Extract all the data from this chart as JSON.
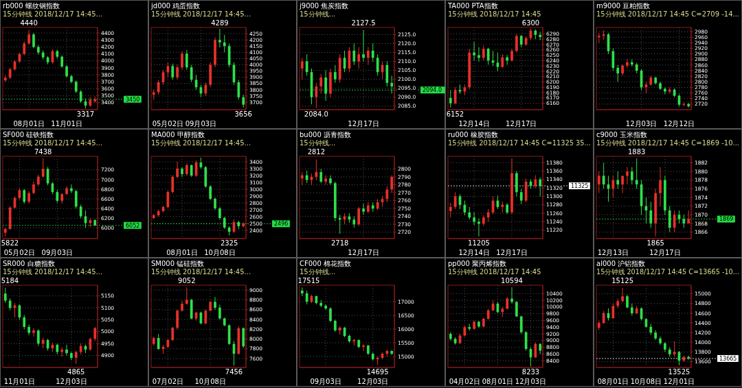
{
  "chart_data": [
    {
      "type": "candlestick",
      "title": "rb000 螺纹钢指数",
      "subtitle": "15分钟线 2018/12/17 14:45...",
      "grid": true,
      "ylim": [
        3300,
        4480
      ],
      "yticks": [
        3400,
        3500,
        3600,
        3700,
        3800,
        3900,
        4000,
        4100,
        4200,
        4300,
        4400
      ],
      "categories": [
        null,
        null,
        null,
        null,
        null,
        "08月01日",
        null,
        null,
        null,
        null,
        null,
        null,
        null,
        "11月01日",
        null,
        null,
        null,
        null,
        null,
        null
      ],
      "ohlc": [
        [
          3720,
          3790,
          3700,
          3760
        ],
        [
          3760,
          3900,
          3740,
          3880
        ],
        [
          3880,
          4010,
          3860,
          3990
        ],
        [
          3990,
          4120,
          3970,
          4100
        ],
        [
          4100,
          4280,
          4080,
          4250
        ],
        [
          4250,
          4440,
          4230,
          4380
        ],
        [
          4380,
          4400,
          4180,
          4200
        ],
        [
          4200,
          4230,
          4090,
          4120
        ],
        [
          4120,
          4150,
          4020,
          4050
        ],
        [
          4050,
          4070,
          3950,
          3980
        ],
        [
          3980,
          4170,
          3960,
          4140
        ],
        [
          4140,
          4160,
          4030,
          4060
        ],
        [
          4060,
          4080,
          3900,
          3920
        ],
        [
          3920,
          3940,
          3760,
          3780
        ],
        [
          3780,
          3800,
          3680,
          3700
        ],
        [
          3700,
          3720,
          3540,
          3560
        ],
        [
          3560,
          3580,
          3400,
          3420
        ],
        [
          3420,
          3460,
          3317,
          3360
        ],
        [
          3360,
          3480,
          3340,
          3440
        ],
        [
          3420,
          3490,
          3400,
          3450
        ]
      ],
      "annotations": [
        "4440",
        "3317"
      ],
      "ref_lines": [
        {
          "axis": "y",
          "value": 3450,
          "label": "3450",
          "color": "#22dd44"
        }
      ]
    },
    {
      "type": "candlestick",
      "title": "jd000 鸡蛋指数",
      "subtitle": "15分钟线 2018/12/17 14:45...",
      "grid": true,
      "ylim": [
        3640,
        4300
      ],
      "yticks": [
        3700,
        3750,
        3800,
        3850,
        3900,
        3950,
        4000,
        4050,
        4100,
        4150,
        4200,
        4250
      ],
      "categories": [
        null,
        null,
        null,
        "05月02日",
        null,
        null,
        null,
        null,
        null,
        null,
        "09月03日",
        null,
        null,
        null,
        null,
        null,
        null,
        null,
        null,
        null
      ],
      "ohlc": [
        [
          3760,
          3800,
          3720,
          3780
        ],
        [
          3780,
          3880,
          3760,
          3860
        ],
        [
          3860,
          3960,
          3840,
          3940
        ],
        [
          3940,
          4020,
          3900,
          3990
        ],
        [
          3990,
          4010,
          3880,
          3900
        ],
        [
          3900,
          4000,
          3880,
          3980
        ],
        [
          3980,
          4110,
          3960,
          4090
        ],
        [
          4090,
          4120,
          3960,
          3980
        ],
        [
          3980,
          4000,
          3860,
          3880
        ],
        [
          3880,
          3920,
          3800,
          3820
        ],
        [
          3820,
          3840,
          3740,
          3770
        ],
        [
          3770,
          3860,
          3750,
          3840
        ],
        [
          3840,
          4020,
          3820,
          4000
        ],
        [
          4000,
          4220,
          3980,
          4200
        ],
        [
          4200,
          4289,
          4140,
          4180
        ],
        [
          4180,
          4240,
          4100,
          4150
        ],
        [
          4150,
          4170,
          3980,
          4000
        ],
        [
          4000,
          4020,
          3840,
          3860
        ],
        [
          3860,
          3880,
          3720,
          3740
        ],
        [
          3740,
          3760,
          3656,
          3680
        ]
      ],
      "annotations": [
        "4289",
        "3656"
      ]
    },
    {
      "type": "candlestick",
      "title": "j9000 焦炭指数",
      "subtitle": "15分钟线...",
      "grid": true,
      "ylim": [
        2083,
        2129
      ],
      "yticks": [
        {
          "value": 2085,
          "label": "2085.0"
        },
        {
          "value": 2090,
          "label": "2090.0"
        },
        {
          "value": 2095,
          "label": "2095.0"
        },
        {
          "value": 2100,
          "label": "2100.0"
        },
        {
          "value": 2105,
          "label": "2105.0"
        },
        {
          "value": 2110,
          "label": "2110.0"
        },
        {
          "value": 2115,
          "label": "2115.0"
        },
        {
          "value": 2120,
          "label": "2120.0"
        },
        {
          "value": 2125,
          "label": "2125.0"
        }
      ],
      "categories": [
        null,
        null,
        null,
        null,
        null,
        null,
        null,
        null,
        null,
        null,
        null,
        null,
        null,
        "12月17日",
        null,
        null,
        null,
        null,
        null,
        null
      ],
      "ohlc": [
        [
          2106,
          2112,
          2100,
          2110
        ],
        [
          2110,
          2114,
          2102,
          2104
        ],
        [
          2104,
          2106,
          2086,
          2090
        ],
        [
          2090,
          2098,
          2084.0,
          2096
        ],
        [
          2096,
          2103,
          2092,
          2101
        ],
        [
          2101,
          2105,
          2088,
          2092
        ],
        [
          2092,
          2106,
          2090,
          2104
        ],
        [
          2104,
          2108,
          2098,
          2100
        ],
        [
          2100,
          2114,
          2098,
          2112
        ],
        [
          2112,
          2116,
          2104,
          2106
        ],
        [
          2106,
          2118,
          2104,
          2116
        ],
        [
          2116,
          2120,
          2108,
          2110
        ],
        [
          2110,
          2118,
          2106,
          2114
        ],
        [
          2114,
          2127.5,
          2110,
          2112
        ],
        [
          2112,
          2118,
          2108,
          2116
        ],
        [
          2116,
          2120,
          2110,
          2112
        ],
        [
          2112,
          2114,
          2102,
          2104
        ],
        [
          2104,
          2110,
          2100,
          2108
        ],
        [
          2108,
          2110,
          2096,
          2098
        ],
        [
          2098,
          2102,
          2092,
          2096
        ]
      ],
      "annotations": [
        "2127.5",
        "2084.0"
      ],
      "ref_lines": [
        {
          "axis": "y",
          "value": 2094,
          "label": "2094.0",
          "color": "#22dd44"
        }
      ]
    },
    {
      "type": "candlestick",
      "title": "TA000 PTA指数",
      "subtitle": "15分钟线 2018/12/17 14:45",
      "grid": true,
      "ylim": [
        6148,
        6302
      ],
      "yticks": [
        6160,
        6170,
        6180,
        6190,
        6200,
        6210,
        6220,
        6230,
        6240,
        6250,
        6260,
        6270,
        6280,
        6290
      ],
      "categories": [
        null,
        null,
        null,
        null,
        null,
        "12月14日",
        null,
        null,
        null,
        null,
        null,
        null,
        null,
        null,
        null,
        "12月17日",
        null,
        null,
        null,
        null
      ],
      "ohlc": [
        [
          6170,
          6185,
          6152,
          6160
        ],
        [
          6160,
          6190,
          6158,
          6185
        ],
        [
          6185,
          6195,
          6178,
          6182
        ],
        [
          6182,
          6195,
          6175,
          6190
        ],
        [
          6190,
          6262,
          6186,
          6255
        ],
        [
          6255,
          6275,
          6240,
          6250
        ],
        [
          6250,
          6265,
          6238,
          6245
        ],
        [
          6245,
          6268,
          6240,
          6262
        ],
        [
          6262,
          6264,
          6232,
          6240
        ],
        [
          6240,
          6258,
          6230,
          6236
        ],
        [
          6236,
          6255,
          6220,
          6228
        ],
        [
          6228,
          6252,
          6226,
          6246
        ],
        [
          6246,
          6250,
          6232,
          6240
        ],
        [
          6240,
          6262,
          6238,
          6258
        ],
        [
          6258,
          6290,
          6255,
          6286
        ],
        [
          6286,
          6288,
          6265,
          6270
        ],
        [
          6270,
          6285,
          6268,
          6282
        ],
        [
          6282,
          6300,
          6278,
          6296
        ],
        [
          6296,
          6298,
          6280,
          6288
        ],
        [
          6288,
          6294,
          6278,
          6284
        ]
      ],
      "annotations": [
        "6300",
        "6152"
      ]
    },
    {
      "type": "candlestick",
      "title": "m9000 豆粕指数",
      "subtitle": "15分钟线 2018/12/17 14:45 C=2709 -14...",
      "grid": true,
      "ylim": [
        2700,
        2995
      ],
      "yticks": [
        2720,
        2740,
        2760,
        2780,
        2800,
        2820,
        2840,
        2860,
        2880,
        2900,
        2920,
        2940,
        2960,
        2980
      ],
      "categories": [
        null,
        null,
        null,
        null,
        null,
        null,
        null,
        null,
        null,
        "12月03日",
        null,
        null,
        null,
        null,
        null,
        null,
        null,
        "12月12日",
        null,
        null
      ],
      "ohlc": [
        [
          2960,
          2975,
          2940,
          2965
        ],
        [
          2965,
          2985,
          2950,
          2970
        ],
        [
          2970,
          2975,
          2900,
          2910
        ],
        [
          2910,
          2920,
          2840,
          2850
        ],
        [
          2850,
          2860,
          2800,
          2830
        ],
        [
          2830,
          2862,
          2822,
          2858
        ],
        [
          2858,
          2882,
          2850,
          2870
        ],
        [
          2870,
          2880,
          2855,
          2862
        ],
        [
          2862,
          2868,
          2830,
          2840
        ],
        [
          2840,
          2845,
          2770,
          2780
        ],
        [
          2780,
          2800,
          2758,
          2790
        ],
        [
          2790,
          2822,
          2785,
          2815
        ],
        [
          2815,
          2818,
          2790,
          2795
        ],
        [
          2795,
          2800,
          2770,
          2775
        ],
        [
          2775,
          2780,
          2755,
          2765
        ],
        [
          2765,
          2780,
          2758,
          2772
        ],
        [
          2772,
          2776,
          2745,
          2750
        ],
        [
          2750,
          2755,
          2712,
          2718
        ],
        [
          2718,
          2728,
          2712,
          2720
        ],
        [
          2720,
          2725,
          2708,
          2712
        ]
      ]
    },
    {
      "type": "candlestick",
      "title": "SF000 硅铁指数",
      "subtitle": "15分钟线 2018/12/17 14:45...",
      "grid": true,
      "ylim": [
        5780,
        7480
      ],
      "yticks": [
        6000,
        6200,
        6400,
        6600,
        6800,
        7000,
        7200
      ],
      "categories": [
        null,
        null,
        null,
        "05月02日",
        null,
        null,
        null,
        null,
        null,
        null,
        null,
        "09月03日",
        null,
        null,
        null,
        null,
        null,
        null,
        null,
        null
      ],
      "ohlc": [
        [
          5900,
          6000,
          5822,
          5980
        ],
        [
          5980,
          6450,
          5960,
          6420
        ],
        [
          6420,
          6650,
          6400,
          6620
        ],
        [
          6620,
          6820,
          6580,
          6780
        ],
        [
          6780,
          6800,
          6500,
          6540
        ],
        [
          6540,
          6760,
          6500,
          6720
        ],
        [
          6720,
          6960,
          6700,
          6900
        ],
        [
          6900,
          7100,
          6860,
          7060
        ],
        [
          7060,
          7438,
          7040,
          7220
        ],
        [
          7220,
          7260,
          6880,
          6920
        ],
        [
          6920,
          6950,
          6700,
          6740
        ],
        [
          6740,
          6780,
          6520,
          6560
        ],
        [
          6560,
          6720,
          6500,
          6700
        ],
        [
          6700,
          6860,
          6680,
          6820
        ],
        [
          6820,
          6900,
          6720,
          6760
        ],
        [
          6760,
          6790,
          6400,
          6440
        ],
        [
          6440,
          6480,
          6200,
          6240
        ],
        [
          6240,
          6360,
          6000,
          6100
        ],
        [
          6100,
          6200,
          6020,
          6160
        ],
        [
          6160,
          6180,
          6040,
          6052
        ]
      ],
      "annotations": [
        "7438",
        "5822"
      ],
      "ref_lines": [
        {
          "axis": "y",
          "value": 6052,
          "label": "6052",
          "color": "#22dd44"
        }
      ]
    },
    {
      "type": "candlestick",
      "title": "MA000 甲醇指数",
      "subtitle": "15分钟线 2018/12/17 14:45...",
      "grid": true,
      "ylim": [
        2280,
        3480
      ],
      "yticks": [
        2400,
        2500,
        2600,
        2700,
        2800,
        2900,
        3000,
        3100,
        3200,
        3300,
        3400
      ],
      "categories": [
        null,
        null,
        null,
        null,
        null,
        null,
        "08月01日",
        null,
        null,
        null,
        null,
        null,
        null,
        null,
        "10月08日",
        null,
        null,
        null,
        null,
        null
      ],
      "ohlc": [
        [
          2580,
          2640,
          2560,
          2620
        ],
        [
          2620,
          2700,
          2600,
          2680
        ],
        [
          2680,
          2760,
          2660,
          2740
        ],
        [
          2740,
          2980,
          2720,
          2960
        ],
        [
          2960,
          3200,
          2940,
          3180
        ],
        [
          3180,
          3400,
          3160,
          3300
        ],
        [
          3300,
          3320,
          3180,
          3220
        ],
        [
          3220,
          3380,
          3200,
          3350
        ],
        [
          3350,
          3360,
          3180,
          3200
        ],
        [
          3200,
          3420,
          3180,
          3390
        ],
        [
          3390,
          3460,
          3300,
          3320
        ],
        [
          3320,
          3340,
          3020,
          3040
        ],
        [
          3040,
          3060,
          2840,
          2860
        ],
        [
          2860,
          2880,
          2700,
          2720
        ],
        [
          2720,
          2740,
          2560,
          2580
        ],
        [
          2580,
          2600,
          2420,
          2440
        ],
        [
          2440,
          2460,
          2325,
          2380
        ],
        [
          2380,
          2560,
          2360,
          2520
        ],
        [
          2520,
          2540,
          2420,
          2460
        ],
        [
          2460,
          2520,
          2440,
          2496
        ]
      ],
      "annotations": [
        "2325"
      ],
      "ref_lines": [
        {
          "axis": "y",
          "value": 2496,
          "label": "2496",
          "color": "#22dd44"
        }
      ]
    },
    {
      "type": "candlestick",
      "title": "bu000 沥青指数",
      "subtitle": "15分钟线...",
      "grid": true,
      "ylim": [
        2712,
        2816
      ],
      "yticks": [
        2720,
        2730,
        2740,
        2750,
        2760,
        2770,
        2780,
        2790,
        2800
      ],
      "categories": [
        null,
        null,
        null,
        null,
        null,
        null,
        null,
        null,
        null,
        null,
        null,
        null,
        null,
        "12月17日",
        null,
        null,
        null,
        null,
        null,
        null
      ],
      "ohlc": [
        [
          2788,
          2796,
          2780,
          2792
        ],
        [
          2792,
          2798,
          2782,
          2786
        ],
        [
          2786,
          2794,
          2780,
          2790
        ],
        [
          2790,
          2812,
          2786,
          2796
        ],
        [
          2796,
          2800,
          2782,
          2784
        ],
        [
          2784,
          2792,
          2780,
          2788
        ],
        [
          2788,
          2792,
          2780,
          2782
        ],
        [
          2782,
          2784,
          2734,
          2738
        ],
        [
          2738,
          2742,
          2718,
          2736
        ],
        [
          2736,
          2744,
          2730,
          2740
        ],
        [
          2740,
          2744,
          2732,
          2736
        ],
        [
          2736,
          2740,
          2726,
          2730
        ],
        [
          2730,
          2752,
          2728,
          2750
        ],
        [
          2750,
          2756,
          2742,
          2746
        ],
        [
          2746,
          2758,
          2744,
          2754
        ],
        [
          2754,
          2758,
          2746,
          2750
        ],
        [
          2750,
          2762,
          2748,
          2758
        ],
        [
          2758,
          2766,
          2752,
          2762
        ],
        [
          2762,
          2778,
          2758,
          2774
        ],
        [
          2774,
          2792,
          2770,
          2790
        ]
      ],
      "annotations": [
        "2812",
        "2718"
      ]
    },
    {
      "type": "candlestick",
      "title": "ru000 橡胶指数",
      "subtitle": "15分钟线 2018/12/17 14:45 C=11325 35...",
      "grid": true,
      "ylim": [
        11200,
        11395
      ],
      "yticks": [
        11220,
        11240,
        11260,
        11280,
        11300,
        11320,
        11340,
        11360,
        11380
      ],
      "categories": [
        null,
        null,
        null,
        null,
        null,
        "12月14日",
        null,
        null,
        null,
        null,
        null,
        null,
        null,
        "12月17日",
        null,
        null,
        null,
        null,
        null,
        null
      ],
      "ohlc": [
        [
          11265,
          11285,
          11250,
          11275
        ],
        [
          11275,
          11310,
          11270,
          11300
        ],
        [
          11300,
          11305,
          11270,
          11280
        ],
        [
          11280,
          11290,
          11255,
          11262
        ],
        [
          11262,
          11275,
          11245,
          11250
        ],
        [
          11250,
          11262,
          11232,
          11240
        ],
        [
          11240,
          11248,
          11205,
          11235
        ],
        [
          11235,
          11255,
          11230,
          11250
        ],
        [
          11250,
          11270,
          11240,
          11262
        ],
        [
          11262,
          11300,
          11258,
          11290
        ],
        [
          11290,
          11302,
          11270,
          11275
        ],
        [
          11275,
          11288,
          11262,
          11280
        ],
        [
          11280,
          11284,
          11258,
          11262
        ],
        [
          11262,
          11390,
          11258,
          11355
        ],
        [
          11355,
          11360,
          11300,
          11310
        ],
        [
          11310,
          11318,
          11282,
          11290
        ],
        [
          11290,
          11342,
          11286,
          11335
        ],
        [
          11335,
          11340,
          11318,
          11325
        ],
        [
          11325,
          11350,
          11320,
          11340
        ],
        [
          11340,
          11345,
          11300,
          11325
        ]
      ],
      "annotations": [
        "11205"
      ],
      "ref_lines": [
        {
          "axis": "y",
          "value": 11325,
          "label": "11325",
          "color": "#ffffff"
        }
      ]
    },
    {
      "type": "candlestick",
      "title": "c9000 玉米指数",
      "subtitle": "15分钟线 2018/12/17 14:45 C=1869 -10...",
      "grid": true,
      "ylim": [
        1864.5,
        1883.5
      ],
      "yticks": [
        1866,
        1868,
        1870,
        1872,
        1874,
        1876,
        1878,
        1880,
        1882
      ],
      "categories": [
        null,
        null,
        null,
        "12月13日",
        null,
        null,
        null,
        null,
        null,
        null,
        null,
        null,
        null,
        null,
        "12月17日",
        null,
        null,
        null,
        null,
        null
      ],
      "ohlc": [
        [
          1877,
          1880,
          1875,
          1879
        ],
        [
          1879,
          1882,
          1876,
          1877
        ],
        [
          1877,
          1879,
          1873,
          1876
        ],
        [
          1876,
          1879,
          1874,
          1878
        ],
        [
          1878,
          1880,
          1876,
          1877
        ],
        [
          1877,
          1879,
          1875,
          1879
        ],
        [
          1879,
          1881,
          1877,
          1880
        ],
        [
          1880,
          1881,
          1877,
          1878
        ],
        [
          1878,
          1883,
          1876,
          1877
        ],
        [
          1877,
          1878,
          1870,
          1872
        ],
        [
          1872,
          1874,
          1868,
          1871
        ],
        [
          1871,
          1873,
          1867,
          1868
        ],
        [
          1868,
          1876,
          1865,
          1875
        ],
        [
          1875,
          1881,
          1872,
          1878
        ],
        [
          1878,
          1879,
          1870,
          1871
        ],
        [
          1871,
          1872,
          1866,
          1867
        ],
        [
          1867,
          1871,
          1866,
          1870
        ],
        [
          1870,
          1871,
          1868,
          1869
        ],
        [
          1869,
          1870,
          1867,
          1868
        ],
        [
          1868,
          1871,
          1868,
          1869
        ]
      ],
      "annotations": [
        "1883",
        "1865"
      ],
      "ref_lines": [
        {
          "axis": "y",
          "value": 1869,
          "label": "1869",
          "color": "#22dd44"
        }
      ]
    },
    {
      "type": "candlestick",
      "title": "SR000 白糖指数",
      "subtitle": "15分钟线 2018/12/17 14:45...",
      "grid": true,
      "ylim": [
        4850,
        5195
      ],
      "yticks": [
        4900,
        4950,
        5000,
        5050,
        5100,
        5150
      ],
      "categories": [
        null,
        null,
        null,
        "11月01日",
        null,
        null,
        null,
        null,
        null,
        null,
        null,
        null,
        null,
        null,
        "12月03日",
        null,
        null,
        null,
        null,
        null
      ],
      "ohlc": [
        [
          5160,
          5184,
          5120,
          5130
        ],
        [
          5130,
          5140,
          5090,
          5100
        ],
        [
          5100,
          5120,
          5060,
          5110
        ],
        [
          5110,
          5115,
          5050,
          5060
        ],
        [
          5060,
          5070,
          5010,
          5020
        ],
        [
          5020,
          5030,
          4985,
          4995
        ],
        [
          4995,
          5015,
          4980,
          5005
        ],
        [
          5005,
          5010,
          4940,
          4950
        ],
        [
          4950,
          4975,
          4930,
          4965
        ],
        [
          4965,
          4970,
          4920,
          4930
        ],
        [
          4930,
          4955,
          4915,
          4945
        ],
        [
          4945,
          4950,
          4905,
          4915
        ],
        [
          4915,
          4935,
          4895,
          4925
        ],
        [
          4925,
          4945,
          4900,
          4910
        ],
        [
          4910,
          4915,
          4880,
          4890
        ],
        [
          4890,
          4920,
          4865,
          4915
        ],
        [
          4915,
          4950,
          4905,
          4940
        ],
        [
          4940,
          4945,
          4910,
          4925
        ],
        [
          4925,
          4975,
          4920,
          4970
        ],
        [
          4970,
          5020,
          4960,
          5015
        ]
      ],
      "annotations": [
        "5184",
        "4865"
      ]
    },
    {
      "type": "candlestick",
      "title": "SM000 锰硅指数",
      "subtitle": "15分钟线 2018/12/17 14:45...",
      "grid": true,
      "ylim": [
        7420,
        9100
      ],
      "yticks": [
        7600,
        7800,
        8000,
        8200,
        8400,
        8600,
        8800,
        9000
      ],
      "categories": [
        null,
        null,
        null,
        "07月02日",
        null,
        null,
        null,
        null,
        null,
        null,
        null,
        null,
        "10月08日",
        null,
        null,
        null,
        null,
        null,
        null,
        null
      ],
      "ohlc": [
        [
          7900,
          8050,
          7860,
          8020
        ],
        [
          8020,
          8100,
          7780,
          7800
        ],
        [
          7800,
          7880,
          7700,
          7840
        ],
        [
          7840,
          8000,
          7820,
          7980
        ],
        [
          7980,
          8250,
          7960,
          8230
        ],
        [
          8230,
          8600,
          8200,
          8580
        ],
        [
          8580,
          8780,
          8560,
          8720
        ],
        [
          8720,
          9052,
          8700,
          8800
        ],
        [
          8800,
          8820,
          8400,
          8420
        ],
        [
          8420,
          8560,
          8380,
          8540
        ],
        [
          8540,
          8560,
          8300,
          8320
        ],
        [
          8320,
          8600,
          8300,
          8580
        ],
        [
          8580,
          8780,
          8560,
          8760
        ],
        [
          8760,
          8860,
          8600,
          8640
        ],
        [
          8640,
          8700,
          8400,
          8420
        ],
        [
          8420,
          8440,
          8260,
          8280
        ],
        [
          8280,
          8300,
          7880,
          7900
        ],
        [
          7900,
          7960,
          7456,
          7700
        ],
        [
          7700,
          8260,
          7680,
          8220
        ],
        [
          8220,
          8240,
          7820,
          7850
        ]
      ],
      "annotations": [
        "9052",
        "7456"
      ]
    },
    {
      "type": "candlestick",
      "title": "CF000 棉花指数",
      "subtitle": "15分钟线...",
      "grid": true,
      "ylim": [
        14600,
        17600
      ],
      "yticks": [
        15000,
        15500,
        16000,
        16500,
        17000
      ],
      "categories": [
        null,
        null,
        null,
        null,
        null,
        "09月03日",
        null,
        null,
        null,
        null,
        null,
        null,
        null,
        null,
        null,
        "12月03日",
        null,
        null,
        null,
        null
      ],
      "ohlc": [
        [
          17400,
          17515,
          17200,
          17300
        ],
        [
          17300,
          17400,
          16900,
          17000
        ],
        [
          17000,
          17250,
          16950,
          17200
        ],
        [
          17200,
          17220,
          16900,
          16950
        ],
        [
          16950,
          17050,
          16800,
          16850
        ],
        [
          16850,
          16900,
          16700,
          16750
        ],
        [
          16750,
          16800,
          16250,
          16300
        ],
        [
          16300,
          16350,
          15900,
          15950
        ],
        [
          15950,
          16100,
          15800,
          16050
        ],
        [
          16050,
          16080,
          15700,
          15750
        ],
        [
          15750,
          15800,
          15500,
          15550
        ],
        [
          15550,
          15650,
          15400,
          15600
        ],
        [
          15600,
          15620,
          15300,
          15350
        ],
        [
          15350,
          15450,
          15200,
          15400
        ],
        [
          15400,
          15420,
          15050,
          15100
        ],
        [
          15100,
          15150,
          14850,
          14900
        ],
        [
          14900,
          15000,
          14695,
          14950
        ],
        [
          14950,
          15150,
          14900,
          15100
        ],
        [
          15100,
          15250,
          15000,
          15200
        ],
        [
          15200,
          15230,
          15050,
          15100
        ]
      ],
      "annotations": [
        "17515",
        "14695"
      ]
    },
    {
      "type": "candlestick",
      "title": "pp000 聚丙烯指数",
      "subtitle": "15分钟线 2018/12/17 14:45",
      "grid": true,
      "ylim": [
        8200,
        10650
      ],
      "yticks": [
        8400,
        8600,
        8800,
        9000,
        9200,
        9400,
        9600,
        9800,
        10000,
        10200,
        10400
      ],
      "categories": [
        null,
        null,
        null,
        "04月02日",
        null,
        null,
        null,
        null,
        null,
        null,
        "08月01日",
        null,
        null,
        null,
        null,
        null,
        null,
        "12月03日",
        null,
        null
      ],
      "ohlc": [
        [
          9200,
          9250,
          9000,
          9050
        ],
        [
          9050,
          9100,
          8880,
          8920
        ],
        [
          8920,
          9200,
          8900,
          9150
        ],
        [
          9150,
          9450,
          9120,
          9400
        ],
        [
          9400,
          9500,
          9300,
          9350
        ],
        [
          9350,
          9600,
          9320,
          9560
        ],
        [
          9560,
          9580,
          9380,
          9420
        ],
        [
          9420,
          9680,
          9400,
          9650
        ],
        [
          9650,
          9950,
          9620,
          9900
        ],
        [
          9900,
          10200,
          9880,
          10100
        ],
        [
          10100,
          10150,
          9820,
          9850
        ],
        [
          9850,
          10000,
          9700,
          9950
        ],
        [
          9950,
          10300,
          9930,
          10250
        ],
        [
          10250,
          10594,
          10100,
          10150
        ],
        [
          10150,
          10180,
          9700,
          9720
        ],
        [
          9720,
          9740,
          9200,
          9250
        ],
        [
          9250,
          9280,
          8700,
          8750
        ],
        [
          8750,
          8800,
          8233,
          8500
        ],
        [
          8500,
          8950,
          8480,
          8900
        ],
        [
          8900,
          8920,
          8600,
          8700
        ]
      ],
      "annotations": [
        "10594",
        "8233"
      ]
    },
    {
      "type": "candlestick",
      "title": "al000 沪铝指数",
      "subtitle": "15分钟线 2018/12/17 14:45 C=13665 -10...",
      "grid": true,
      "ylim": [
        13480,
        15180
      ],
      "yticks": [
        13600,
        13800,
        14000,
        14200,
        14400,
        14600,
        14800,
        15000
      ],
      "categories": [
        null,
        null,
        null,
        "08月01日",
        null,
        null,
        null,
        null,
        null,
        null,
        "10月08日",
        null,
        null,
        null,
        null,
        null,
        null,
        "12月01日",
        null,
        null
      ],
      "ohlc": [
        [
          14300,
          14450,
          14250,
          14400
        ],
        [
          14400,
          14650,
          14380,
          14600
        ],
        [
          14600,
          14700,
          14450,
          14500
        ],
        [
          14500,
          14800,
          14480,
          14750
        ],
        [
          14750,
          14900,
          14700,
          14850
        ],
        [
          14850,
          15125,
          14820,
          14950
        ],
        [
          14950,
          14980,
          14700,
          14720
        ],
        [
          14720,
          14800,
          14550,
          14600
        ],
        [
          14600,
          14750,
          14580,
          14700
        ],
        [
          14700,
          14720,
          14450,
          14480
        ],
        [
          14480,
          14500,
          14300,
          14320
        ],
        [
          14320,
          14380,
          14150,
          14200
        ],
        [
          14200,
          14250,
          14050,
          14080
        ],
        [
          14080,
          14120,
          13950,
          13980
        ],
        [
          13980,
          14000,
          13800,
          13850
        ],
        [
          13850,
          13900,
          13700,
          13750
        ],
        [
          13750,
          14020,
          13700,
          13800
        ],
        [
          13800,
          13820,
          13525,
          13620
        ],
        [
          13620,
          13720,
          13600,
          13700
        ],
        [
          13700,
          13720,
          13640,
          13665
        ]
      ],
      "annotations": [
        "15125",
        "13525"
      ],
      "ref_lines": [
        {
          "axis": "y",
          "value": 13665,
          "label": "13665",
          "color": "#ffffff"
        }
      ]
    }
  ]
}
